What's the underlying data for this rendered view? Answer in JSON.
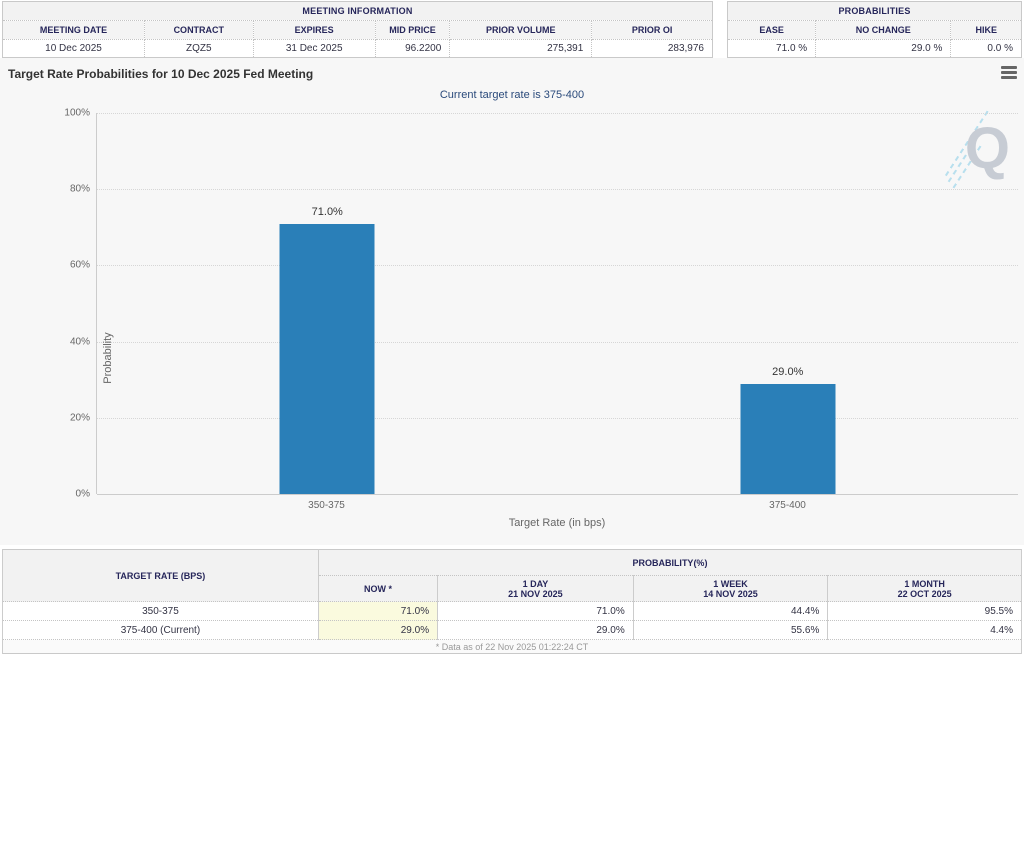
{
  "meeting_info": {
    "title": "MEETING INFORMATION",
    "headers": [
      "MEETING DATE",
      "CONTRACT",
      "EXPIRES",
      "MID PRICE",
      "PRIOR VOLUME",
      "PRIOR OI"
    ],
    "values": [
      "10 Dec 2025",
      "ZQZ5",
      "31 Dec 2025",
      "96.2200",
      "275,391",
      "283,976"
    ]
  },
  "probabilities_info": {
    "title": "PROBABILITIES",
    "headers": [
      "EASE",
      "NO CHANGE",
      "HIKE"
    ],
    "values": [
      "71.0 %",
      "29.0 %",
      "0.0 %"
    ]
  },
  "chart": {
    "title": "Target Rate Probabilities for 10 Dec 2025 Fed Meeting",
    "subtitle": "Current target rate is 375-400",
    "y_tick_labels": [
      "100%",
      "80%",
      "60%",
      "40%",
      "20%",
      "0%"
    ],
    "watermark_letter": "Q",
    "menu_icon": "hamburger-icon"
  },
  "chart_data": {
    "type": "bar",
    "title": "Target Rate Probabilities for 10 Dec 2025 Fed Meeting",
    "subtitle": "Current target rate is 375-400",
    "categories": [
      "350-375",
      "375-400"
    ],
    "values": [
      71.0,
      29.0
    ],
    "value_labels": [
      "71.0%",
      "29.0%"
    ],
    "xlabel": "Target Rate (in bps)",
    "ylabel": "Probability",
    "ylim": [
      0,
      100
    ],
    "y_ticks": [
      0,
      20,
      40,
      60,
      80,
      100
    ],
    "grid": "dotted-horizontal",
    "legend": "none",
    "bar_color": "#2a7fb8"
  },
  "history_table": {
    "rate_header": "TARGET RATE (BPS)",
    "group_header": "PROBABILITY(%)",
    "columns": [
      {
        "label": "NOW *",
        "sub": ""
      },
      {
        "label": "1 DAY",
        "sub": "21 NOV 2025"
      },
      {
        "label": "1 WEEK",
        "sub": "14 NOV 2025"
      },
      {
        "label": "1 MONTH",
        "sub": "22 OCT 2025"
      }
    ],
    "rows": [
      {
        "rate": "350-375",
        "cells": [
          "71.0%",
          "71.0%",
          "44.4%",
          "95.5%"
        ]
      },
      {
        "rate": "375-400 (Current)",
        "cells": [
          "29.0%",
          "29.0%",
          "55.6%",
          "4.4%"
        ]
      }
    ],
    "footnote": "* Data as of 22 Nov 2025 01:22:24 CT"
  }
}
